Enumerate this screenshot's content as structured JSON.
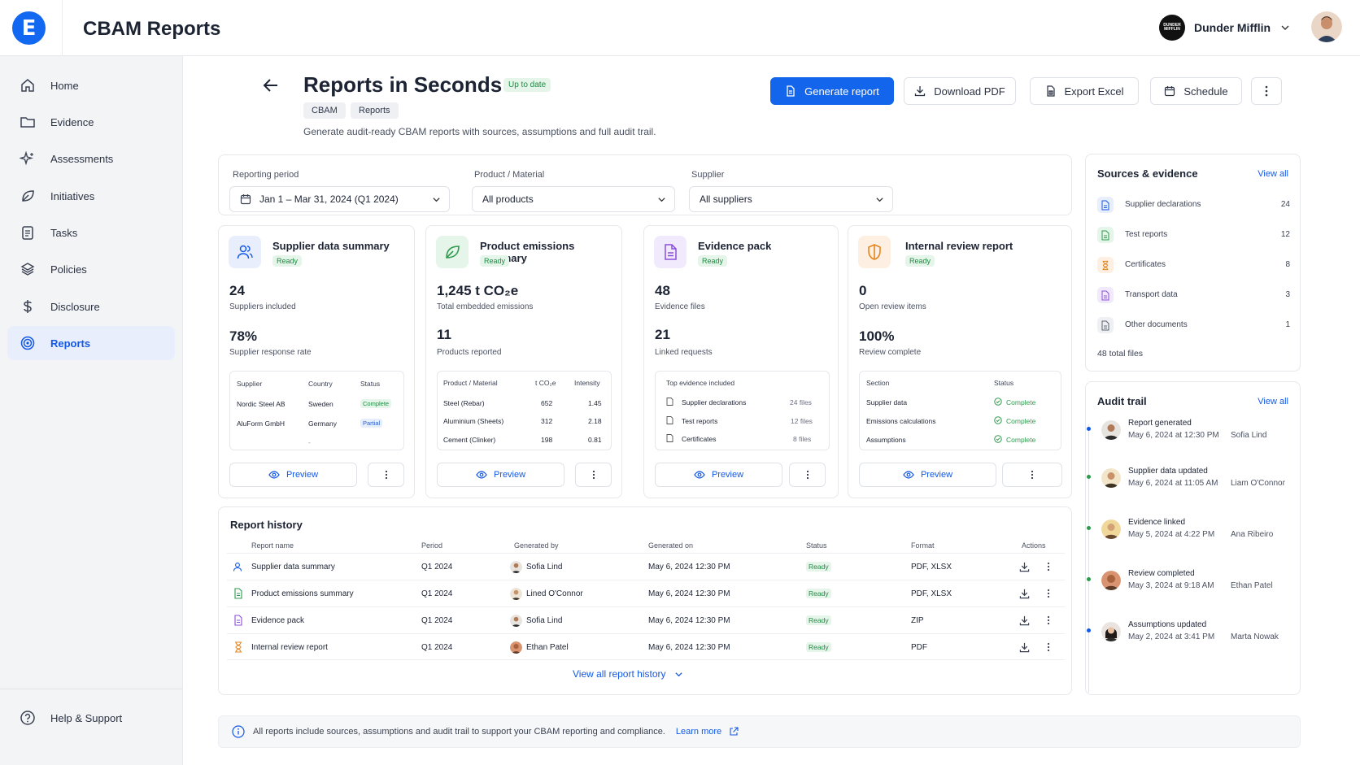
{
  "app": {
    "title": "CBAM Reports",
    "logo_letter": "E",
    "org_name": "Dunder Mifflin",
    "org_logo_text": "DUNDER MIFFLIN"
  },
  "sidebar": {
    "items": [
      {
        "label": "Home",
        "icon": "home-icon"
      },
      {
        "label": "Evidence",
        "icon": "folder-icon"
      },
      {
        "label": "Assessments",
        "icon": "sparkle-icon"
      },
      {
        "label": "Initiatives",
        "icon": "leaf-icon"
      },
      {
        "label": "Tasks",
        "icon": "clipboard-icon"
      },
      {
        "label": "Policies",
        "icon": "layers-icon"
      },
      {
        "label": "Disclosure",
        "icon": "dollar-icon"
      },
      {
        "label": "Reports",
        "icon": "target-icon",
        "active": true
      }
    ],
    "help": "Help & Support"
  },
  "page": {
    "title": "Reports in Seconds",
    "status": "Up to date",
    "tags": [
      "CBAM",
      "Reports"
    ],
    "subtitle": "Generate audit-ready CBAM reports with sources, assumptions and full audit trail."
  },
  "actions": {
    "generate": "Generate report",
    "download": "Download PDF",
    "export": "Export Excel",
    "schedule": "Schedule"
  },
  "filters": {
    "period_label": "Reporting period",
    "period_value": "Jan 1 – Mar 31, 2024 (Q1 2024)",
    "product_label": "Product / Material",
    "product_value": "All products",
    "supplier_label": "Supplier",
    "supplier_value": "All suppliers"
  },
  "cards": {
    "supplier": {
      "title": "Supplier data summary",
      "status": "Ready",
      "m1": "24",
      "m1_label": "Suppliers included",
      "m2": "78%",
      "m2_label": "Supplier response rate",
      "head": [
        "Supplier",
        "Country",
        "Status"
      ],
      "rows": [
        [
          "Nordic Steel AB",
          "Sweden",
          "Complete"
        ],
        [
          "AluForm GmbH",
          "Germany",
          "Partial"
        ]
      ],
      "placeholder": "-"
    },
    "emissions": {
      "title": "Product emissions summary",
      "status": "Ready",
      "m1": "1,245 t CO₂e",
      "m1_label": "Total embedded emissions",
      "m2": "11",
      "m2_label": "Products reported",
      "head": [
        "Product / Material",
        "t CO₂e",
        "Intensity"
      ],
      "rows": [
        [
          "Steel (Rebar)",
          "652",
          "1.45"
        ],
        [
          "Aluminium (Sheets)",
          "312",
          "2.18"
        ],
        [
          "Cement (Clinker)",
          "198",
          "0.81"
        ]
      ]
    },
    "evidence": {
      "title": "Evidence pack",
      "status": "Ready",
      "m1": "48",
      "m1_label": "Evidence files",
      "m2": "21",
      "m2_label": "Linked requests",
      "head": "Top evidence included",
      "rows": [
        [
          "Supplier declarations",
          "24 files"
        ],
        [
          "Test reports",
          "12 files"
        ],
        [
          "Certificates",
          "8 files"
        ]
      ]
    },
    "review": {
      "title": "Internal review report",
      "status": "Ready",
      "m1": "0",
      "m1_label": "Open review items",
      "m2": "100%",
      "m2_label": "Review complete",
      "head": [
        "Section",
        "Status"
      ],
      "rows": [
        [
          "Supplier data",
          "Complete"
        ],
        [
          "Emissions calculations",
          "Complete"
        ],
        [
          "Assumptions",
          "Complete"
        ]
      ]
    },
    "preview_label": "Preview"
  },
  "history": {
    "title": "Report history",
    "columns": [
      "Report name",
      "Period",
      "Generated by",
      "Generated on",
      "Status",
      "Format",
      "Actions"
    ],
    "rows": [
      {
        "name": "Supplier data summary",
        "period": "Q1 2024",
        "by": "Sofia Lind",
        "on": "May 6, 2024 12:30 PM",
        "status": "Ready",
        "format": "PDF, XLSX"
      },
      {
        "name": "Product emissions summary",
        "period": "Q1 2024",
        "by": "Lined O'Connor",
        "on": "May 6, 2024 12:30 PM",
        "status": "Ready",
        "format": "PDF, XLSX"
      },
      {
        "name": "Evidence pack",
        "period": "Q1 2024",
        "by": "Sofia Lind",
        "on": "May 6, 2024 12:30 PM",
        "status": "Ready",
        "format": "ZIP"
      },
      {
        "name": "Internal review report",
        "period": "Q1 2024",
        "by": "Ethan Patel",
        "on": "May 6, 2024 12:30 PM",
        "status": "Ready",
        "format": "PDF"
      }
    ],
    "view_all": "View all report history"
  },
  "sources": {
    "title": "Sources & evidence",
    "view_all": "View all",
    "items": [
      {
        "name": "Supplier declarations",
        "count": "24"
      },
      {
        "name": "Test reports",
        "count": "12"
      },
      {
        "name": "Certificates",
        "count": "8"
      },
      {
        "name": "Transport data",
        "count": "3"
      },
      {
        "name": "Other documents",
        "count": "1"
      }
    ],
    "total": "48 total files"
  },
  "audit": {
    "title": "Audit trail",
    "view_all": "View all",
    "events": [
      {
        "title": "Report generated",
        "time": "May 6, 2024 at 12:30 PM",
        "user": "Sofia Lind"
      },
      {
        "title": "Supplier data updated",
        "time": "May 6, 2024 at 11:05 AM",
        "user": "Liam O'Connor"
      },
      {
        "title": "Evidence linked",
        "time": "May 5, 2024 at 4:22 PM",
        "user": "Ana Ribeiro"
      },
      {
        "title": "Review completed",
        "time": "May 3, 2024 at 9:18 AM",
        "user": "Ethan Patel"
      },
      {
        "title": "Assumptions updated",
        "time": "May 2, 2024 at 3:41 PM",
        "user": "Marta Nowak"
      }
    ]
  },
  "footer": {
    "text": "All reports include sources, assumptions and audit trail to support your CBAM reporting and compliance.",
    "link": "Learn more"
  },
  "colors": {
    "accent": "#1366ec",
    "ready_bg": "#e5f5ea",
    "ready_text": "#1f8a42"
  }
}
